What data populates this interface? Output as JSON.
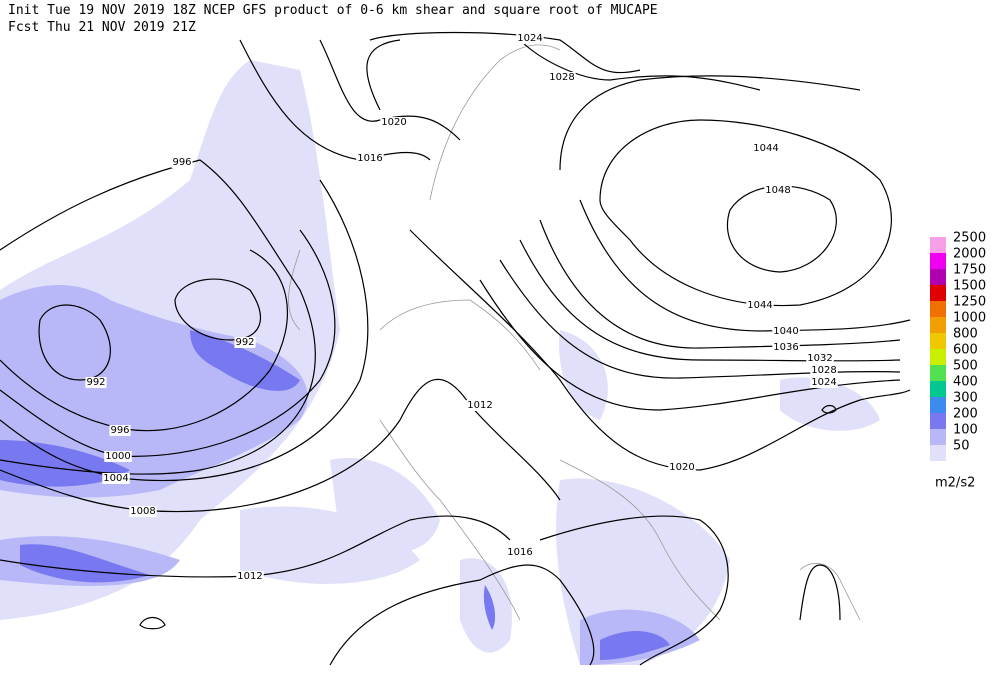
{
  "header": {
    "line1": "Init  Tue 19 NOV 2019 18Z  NCEP GFS product of 0-6 km shear and square root of MUCAPE",
    "line2": "Fcst Thu 21 NOV 2019 21Z"
  },
  "isobars": [
    "1024",
    "1028",
    "1020",
    "1016",
    "996",
    "992",
    "992",
    "996",
    "1000",
    "1004",
    "1008",
    "1012",
    "1012",
    "1016",
    "1020",
    "1044",
    "1048",
    "1044",
    "1040",
    "1036",
    "1032",
    "1028",
    "1024"
  ],
  "legend": {
    "entries": [
      {
        "label": "2500",
        "color": "#f7a0e8"
      },
      {
        "label": "2000",
        "color": "#f000f0"
      },
      {
        "label": "1750",
        "color": "#b000b0"
      },
      {
        "label": "1500",
        "color": "#e00000"
      },
      {
        "label": "1250",
        "color": "#f07000"
      },
      {
        "label": "1000",
        "color": "#f0a000"
      },
      {
        "label": "800",
        "color": "#f0c800"
      },
      {
        "label": "600",
        "color": "#c8f000"
      },
      {
        "label": "500",
        "color": "#50e050"
      },
      {
        "label": "400",
        "color": "#00c890"
      },
      {
        "label": "300",
        "color": "#3c8cf0"
      },
      {
        "label": "200",
        "color": "#7878f0"
      },
      {
        "label": "100",
        "color": "#b8b8f8"
      },
      {
        "label": "50",
        "color": "#e0e0fa"
      }
    ],
    "unit": "m2/s2"
  }
}
